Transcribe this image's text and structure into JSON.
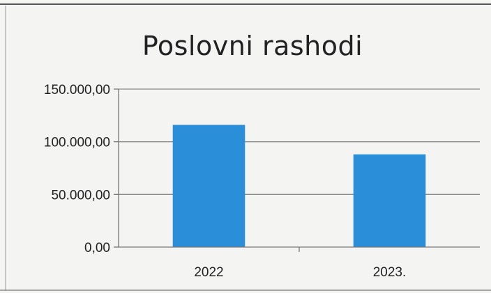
{
  "chart_data": {
    "type": "bar",
    "title": "Poslovni rashodi",
    "categories": [
      "2022",
      "2023."
    ],
    "values": [
      116000,
      88000
    ],
    "ylim": [
      0,
      150000
    ],
    "yticks": [
      0,
      50000,
      100000,
      150000
    ],
    "ytick_labels": [
      "0,00",
      "50.000,00",
      "100.000,00",
      "150.000,00"
    ],
    "grid": true,
    "bar_color": "#2a8fd8"
  }
}
